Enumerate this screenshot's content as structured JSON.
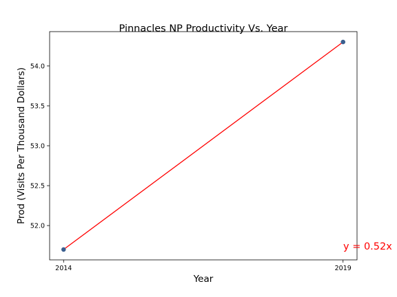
{
  "chart_data": {
    "type": "scatter",
    "title": "Pinnacles NP Productivity Vs. Year",
    "xlabel": "Year",
    "ylabel": "Prod (Visits Per Thousand Dollars)",
    "x_ticks": [
      2014,
      2019
    ],
    "y_ticks": [
      "52.0",
      "52.5",
      "53.0",
      "53.5",
      "54.0"
    ],
    "xlim": [
      2013.75,
      2019.25
    ],
    "ylim": [
      51.57,
      54.43
    ],
    "grid": false,
    "points": [
      {
        "x": 2014,
        "y": 51.7
      },
      {
        "x": 2019,
        "y": 54.3
      }
    ],
    "trendline": {
      "label": "y = 0.52x",
      "color": "#ff0000",
      "points": [
        {
          "x": 2014,
          "y": 51.7
        },
        {
          "x": 2019,
          "y": 54.3
        }
      ]
    },
    "marker_color": "#3b5f8f"
  }
}
